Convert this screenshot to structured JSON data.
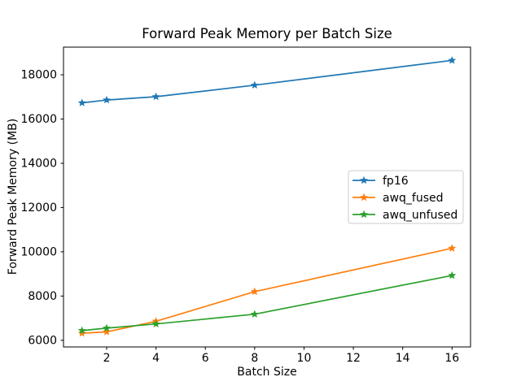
{
  "figure": {
    "background": "#ffffff",
    "axes_edge_color": "#000000",
    "tick_color": "#000000"
  },
  "chart_data": {
    "type": "line",
    "title": "Forward Peak Memory per Batch Size",
    "xlabel": "Batch Size",
    "ylabel": "Forward Peak Memory (MB)",
    "x": [
      1,
      2,
      4,
      8,
      16
    ],
    "series": [
      {
        "name": "fp16",
        "color": "#1f77b4",
        "marker": "star",
        "values": [
          16730,
          16860,
          17010,
          17530,
          18650
        ]
      },
      {
        "name": "awq_fused",
        "color": "#ff7f0e",
        "marker": "star",
        "values": [
          6320,
          6380,
          6860,
          8200,
          10160
        ]
      },
      {
        "name": "awq_unfused",
        "color": "#2ca02c",
        "marker": "star",
        "values": [
          6440,
          6550,
          6740,
          7180,
          8930
        ]
      }
    ],
    "xlim": [
      0.25,
      16.75
    ],
    "ylim": [
      5700,
      19250
    ],
    "xticks": [
      2,
      4,
      6,
      8,
      10,
      12,
      14,
      16
    ],
    "yticks": [
      6000,
      8000,
      10000,
      12000,
      14000,
      16000,
      18000
    ],
    "grid": false,
    "legend": {
      "position": "center-right",
      "frame_color": "#cccccc",
      "background": "rgba(255,255,255,0.8)",
      "entries": [
        "fp16",
        "awq_fused",
        "awq_unfused"
      ]
    }
  }
}
